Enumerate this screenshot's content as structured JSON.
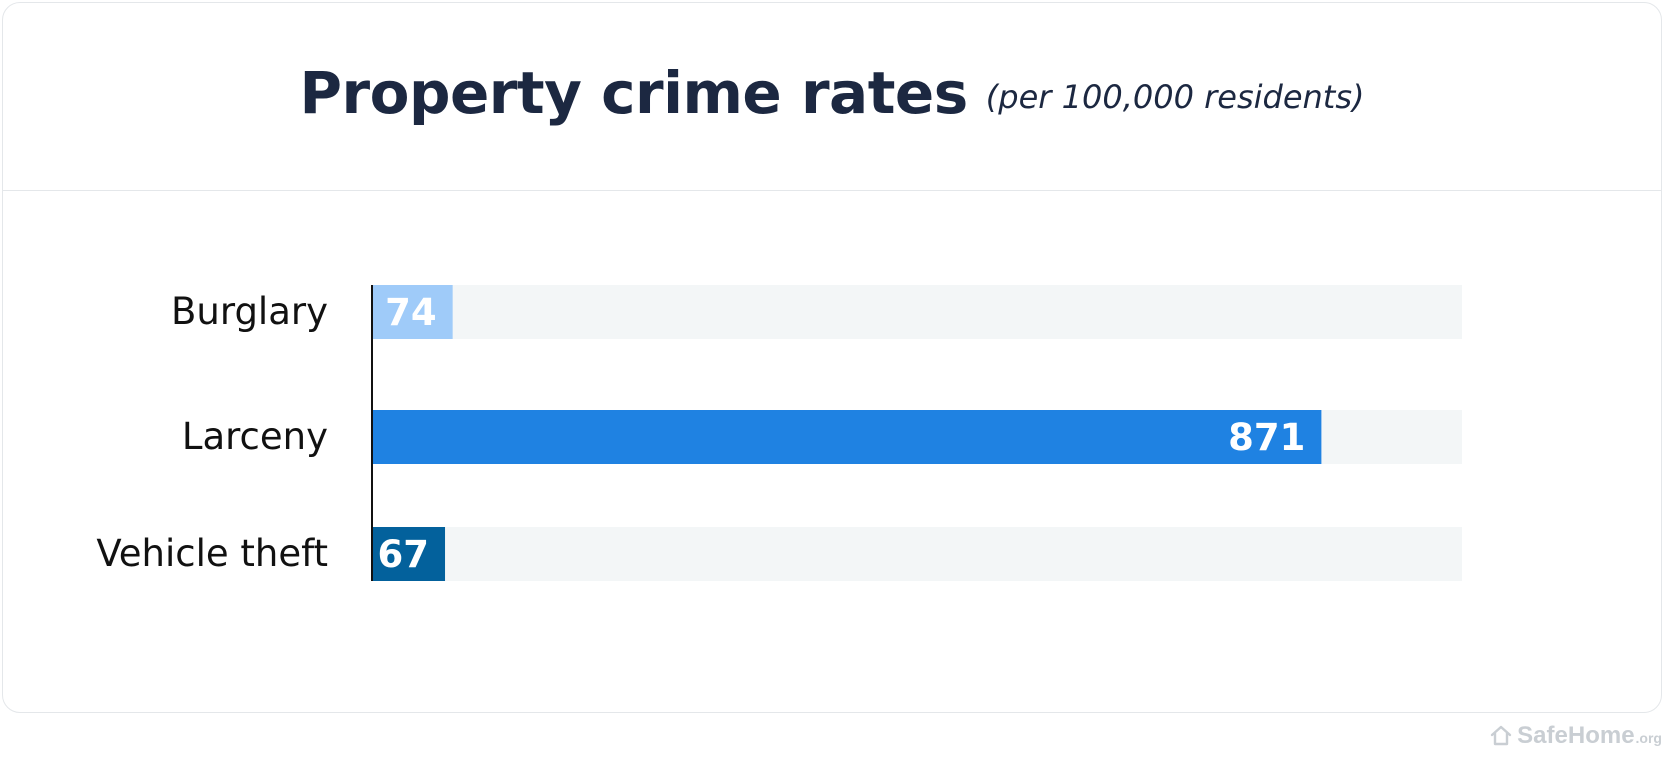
{
  "chart_data": {
    "type": "bar",
    "orientation": "horizontal",
    "title": "Property crime rates",
    "subtitle": "(per 100,000 residents)",
    "categories": [
      "Burglary",
      "Larceny",
      "Vehicle theft"
    ],
    "values": [
      74,
      871,
      67
    ],
    "value_labels": [
      "74",
      "871",
      "67"
    ],
    "colors": [
      "#9fcbf9",
      "#1f82e2",
      "#03619c"
    ],
    "track_color": "#f3f6f7",
    "xlim": [
      0,
      1000
    ],
    "grid": false,
    "legend": "none"
  },
  "watermark": {
    "name": "SafeHome",
    "tld": ".org",
    "icon": "house-icon"
  }
}
